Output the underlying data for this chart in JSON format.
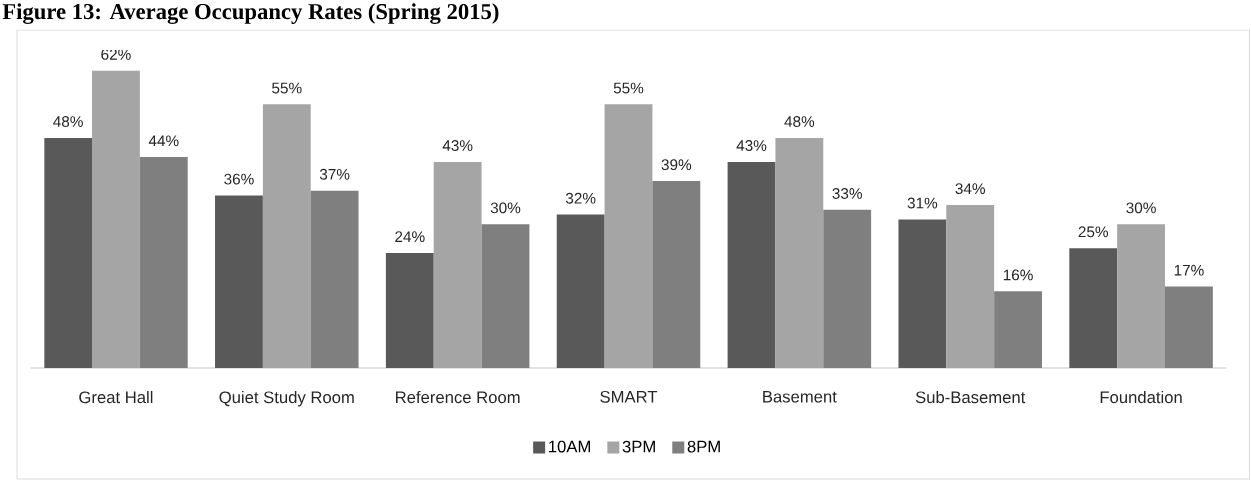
{
  "chart_data": {
    "type": "bar",
    "title": "Figure 13: Average Occupancy Rates (Spring 2015)",
    "categories": [
      "Great Hall",
      "Quiet Study Room",
      "Reference Room",
      "SMART",
      "Basement",
      "Sub-Basement",
      "Foundation"
    ],
    "series": [
      {
        "name": "10AM",
        "color": "#595959",
        "values": [
          48,
          36,
          24,
          32,
          43,
          31,
          25
        ],
        "value_labels": [
          "48%",
          "36%",
          "24%",
          "32%",
          "43%",
          "31%",
          "25%"
        ]
      },
      {
        "name": "3PM",
        "color": "#a5a5a5",
        "values": [
          62,
          55,
          43,
          55,
          48,
          34,
          30
        ],
        "value_labels": [
          "62%",
          "55%",
          "43%",
          "55%",
          "48%",
          "34%",
          "30%"
        ]
      },
      {
        "name": "8PM",
        "color": "#7f7f7f",
        "values": [
          44,
          37,
          30,
          39,
          33,
          16,
          17
        ],
        "value_labels": [
          "44%",
          "37%",
          "30%",
          "39%",
          "33%",
          "16%",
          "17%"
        ]
      }
    ],
    "legend": "bottom"
  }
}
